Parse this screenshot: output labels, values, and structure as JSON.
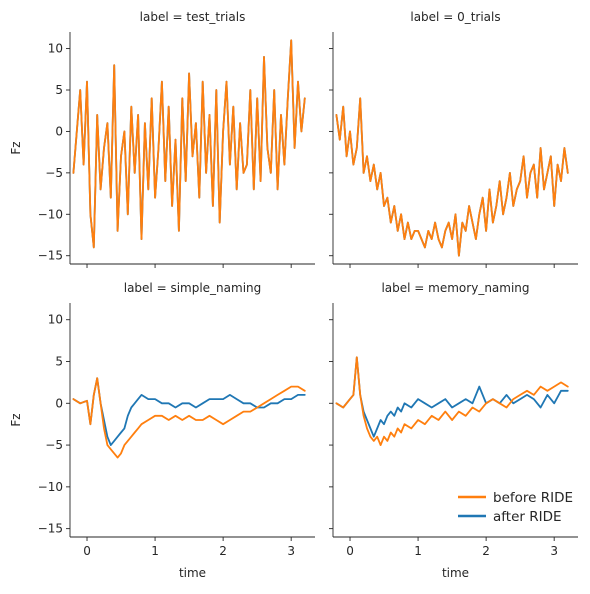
{
  "chart_data": [
    {
      "type": "line",
      "title": "label = test_trials",
      "xlabel": "",
      "ylabel": "Fz",
      "xlim": [
        -0.25,
        3.35
      ],
      "ylim": [
        -16,
        12
      ],
      "xticks": [
        0,
        1,
        2,
        3
      ],
      "yticks": [
        10,
        5,
        0,
        -5,
        -10,
        -15
      ],
      "show_x_tick_labels": false,
      "show_y_tick_labels": true,
      "series": [
        {
          "name": "after RIDE",
          "color": "#1f77b4",
          "x": [
            -0.2,
            -0.15,
            -0.1,
            -0.05,
            0,
            0.05,
            0.1,
            0.15,
            0.2,
            0.25,
            0.3,
            0.35,
            0.4,
            0.45,
            0.5,
            0.55,
            0.6,
            0.65,
            0.7,
            0.75,
            0.8,
            0.85,
            0.9,
            0.95,
            1.0,
            1.05,
            1.1,
            1.15,
            1.2,
            1.25,
            1.3,
            1.35,
            1.4,
            1.45,
            1.5,
            1.55,
            1.6,
            1.65,
            1.7,
            1.75,
            1.8,
            1.85,
            1.9,
            1.95,
            2.0,
            2.05,
            2.1,
            2.15,
            2.2,
            2.25,
            2.3,
            2.35,
            2.4,
            2.45,
            2.5,
            2.55,
            2.6,
            2.65,
            2.7,
            2.75,
            2.8,
            2.85,
            2.9,
            2.95,
            3.0,
            3.05,
            3.1,
            3.15,
            3.2
          ],
          "y": [
            -5,
            0,
            5,
            -4,
            6,
            -10,
            -14,
            2,
            -7,
            -2,
            1,
            -8,
            8,
            -12,
            -3,
            0,
            -10,
            3,
            -5,
            2,
            -13,
            1,
            -7,
            4,
            -8,
            -2,
            6,
            -6,
            3,
            -9,
            -1,
            -12,
            4,
            -6,
            7,
            -3,
            1,
            -8,
            6,
            -5,
            2,
            -9,
            5,
            -11,
            0,
            6,
            -4,
            3,
            -7,
            1,
            -5,
            -4,
            5,
            -7,
            4,
            -6,
            9,
            -2,
            -5,
            5,
            -7,
            2,
            -4,
            4,
            11,
            -2,
            6,
            0,
            4
          ]
        },
        {
          "name": "before RIDE",
          "color": "#ff7f0e",
          "x": [
            -0.2,
            -0.15,
            -0.1,
            -0.05,
            0,
            0.05,
            0.1,
            0.15,
            0.2,
            0.25,
            0.3,
            0.35,
            0.4,
            0.45,
            0.5,
            0.55,
            0.6,
            0.65,
            0.7,
            0.75,
            0.8,
            0.85,
            0.9,
            0.95,
            1.0,
            1.05,
            1.1,
            1.15,
            1.2,
            1.25,
            1.3,
            1.35,
            1.4,
            1.45,
            1.5,
            1.55,
            1.6,
            1.65,
            1.7,
            1.75,
            1.8,
            1.85,
            1.9,
            1.95,
            2.0,
            2.05,
            2.1,
            2.15,
            2.2,
            2.25,
            2.3,
            2.35,
            2.4,
            2.45,
            2.5,
            2.55,
            2.6,
            2.65,
            2.7,
            2.75,
            2.8,
            2.85,
            2.9,
            2.95,
            3.0,
            3.05,
            3.1,
            3.15,
            3.2
          ],
          "y": [
            -5,
            0,
            5,
            -4,
            6,
            -10,
            -14,
            2,
            -7,
            -2,
            1,
            -8,
            8,
            -12,
            -3,
            0,
            -10,
            3,
            -5,
            2,
            -13,
            1,
            -7,
            4,
            -8,
            -2,
            6,
            -6,
            3,
            -9,
            -1,
            -12,
            4,
            -6,
            7,
            -3,
            1,
            -8,
            6,
            -5,
            2,
            -9,
            5,
            -11,
            0,
            6,
            -4,
            3,
            -7,
            1,
            -5,
            -4,
            5,
            -7,
            4,
            -6,
            9,
            -2,
            -5,
            5,
            -7,
            2,
            -4,
            4,
            11,
            -2,
            6,
            0,
            4
          ]
        }
      ]
    },
    {
      "type": "line",
      "title": "label = 0_trials",
      "xlabel": "",
      "ylabel": "",
      "xlim": [
        -0.25,
        3.35
      ],
      "ylim": [
        -16,
        12
      ],
      "xticks": [
        0,
        1,
        2,
        3
      ],
      "yticks": [
        10,
        5,
        0,
        -5,
        -10,
        -15
      ],
      "show_x_tick_labels": false,
      "show_y_tick_labels": false,
      "series": [
        {
          "name": "after RIDE",
          "color": "#1f77b4",
          "x": [
            -0.2,
            -0.15,
            -0.1,
            -0.05,
            0,
            0.05,
            0.1,
            0.15,
            0.2,
            0.25,
            0.3,
            0.35,
            0.4,
            0.45,
            0.5,
            0.55,
            0.6,
            0.65,
            0.7,
            0.75,
            0.8,
            0.85,
            0.9,
            0.95,
            1.0,
            1.05,
            1.1,
            1.15,
            1.2,
            1.25,
            1.3,
            1.35,
            1.4,
            1.45,
            1.5,
            1.55,
            1.6,
            1.65,
            1.7,
            1.75,
            1.8,
            1.85,
            1.9,
            1.95,
            2.0,
            2.05,
            2.1,
            2.15,
            2.2,
            2.25,
            2.3,
            2.35,
            2.4,
            2.45,
            2.5,
            2.55,
            2.6,
            2.65,
            2.7,
            2.75,
            2.8,
            2.85,
            2.9,
            2.95,
            3.0,
            3.05,
            3.1,
            3.15,
            3.2
          ],
          "y": [
            2,
            -1,
            3,
            -3,
            0,
            -4,
            -2,
            4,
            -5,
            -3,
            -6,
            -4,
            -7,
            -5,
            -9,
            -8,
            -11,
            -9,
            -12,
            -10,
            -13,
            -11,
            -13,
            -12,
            -12,
            -13,
            -14,
            -12,
            -13,
            -11,
            -13,
            -14,
            -12,
            -11,
            -13,
            -10,
            -15,
            -11,
            -12,
            -9,
            -11,
            -13,
            -10,
            -8,
            -12,
            -7,
            -11,
            -9,
            -6,
            -10,
            -8,
            -5,
            -9,
            -7,
            -6,
            -3,
            -8,
            -5,
            -4,
            -8,
            -2,
            -7,
            -5,
            -3,
            -9,
            -4,
            -6,
            -2,
            -5
          ]
        },
        {
          "name": "before RIDE",
          "color": "#ff7f0e",
          "x": [
            -0.2,
            -0.15,
            -0.1,
            -0.05,
            0,
            0.05,
            0.1,
            0.15,
            0.2,
            0.25,
            0.3,
            0.35,
            0.4,
            0.45,
            0.5,
            0.55,
            0.6,
            0.65,
            0.7,
            0.75,
            0.8,
            0.85,
            0.9,
            0.95,
            1.0,
            1.05,
            1.1,
            1.15,
            1.2,
            1.25,
            1.3,
            1.35,
            1.4,
            1.45,
            1.5,
            1.55,
            1.6,
            1.65,
            1.7,
            1.75,
            1.8,
            1.85,
            1.9,
            1.95,
            2.0,
            2.05,
            2.1,
            2.15,
            2.2,
            2.25,
            2.3,
            2.35,
            2.4,
            2.45,
            2.5,
            2.55,
            2.6,
            2.65,
            2.7,
            2.75,
            2.8,
            2.85,
            2.9,
            2.95,
            3.0,
            3.05,
            3.1,
            3.15,
            3.2
          ],
          "y": [
            2,
            -1,
            3,
            -3,
            0,
            -4,
            -2,
            4,
            -5,
            -3,
            -6,
            -4,
            -7,
            -5,
            -9,
            -8,
            -11,
            -9,
            -12,
            -10,
            -13,
            -11,
            -13,
            -12,
            -12,
            -13,
            -14,
            -12,
            -13,
            -11,
            -13,
            -14,
            -12,
            -11,
            -13,
            -10,
            -15,
            -11,
            -12,
            -9,
            -11,
            -13,
            -10,
            -8,
            -12,
            -7,
            -11,
            -9,
            -6,
            -10,
            -8,
            -5,
            -9,
            -7,
            -6,
            -3,
            -8,
            -5,
            -4,
            -8,
            -2,
            -7,
            -5,
            -3,
            -9,
            -4,
            -6,
            -2,
            -5
          ]
        }
      ]
    },
    {
      "type": "line",
      "title": "label = simple_naming",
      "xlabel": "time",
      "ylabel": "Fz",
      "xlim": [
        -0.25,
        3.35
      ],
      "ylim": [
        -16,
        12
      ],
      "xticks": [
        0,
        1,
        2,
        3
      ],
      "yticks": [
        10,
        5,
        0,
        -5,
        -10,
        -15
      ],
      "show_x_tick_labels": true,
      "show_y_tick_labels": true,
      "series": [
        {
          "name": "after RIDE",
          "color": "#1f77b4",
          "x": [
            -0.2,
            -0.1,
            0,
            0.05,
            0.1,
            0.15,
            0.2,
            0.25,
            0.3,
            0.35,
            0.4,
            0.45,
            0.5,
            0.55,
            0.6,
            0.65,
            0.7,
            0.75,
            0.8,
            0.9,
            1.0,
            1.1,
            1.2,
            1.3,
            1.4,
            1.5,
            1.6,
            1.7,
            1.8,
            1.9,
            2.0,
            2.1,
            2.2,
            2.3,
            2.4,
            2.5,
            2.6,
            2.7,
            2.8,
            2.9,
            3.0,
            3.1,
            3.2
          ],
          "y": [
            0.5,
            0,
            0.3,
            -2.5,
            1,
            3,
            0,
            -2,
            -4,
            -5,
            -4.5,
            -4,
            -3.5,
            -3,
            -1.5,
            -0.5,
            0,
            0.5,
            1,
            0.5,
            0.5,
            0,
            0,
            -0.5,
            0,
            0,
            -0.5,
            0,
            0.5,
            0.5,
            0.5,
            1,
            0.5,
            0,
            0,
            -0.5,
            -0.5,
            0,
            0,
            0.5,
            0.5,
            1,
            1
          ]
        },
        {
          "name": "before RIDE",
          "color": "#ff7f0e",
          "x": [
            -0.2,
            -0.1,
            0,
            0.05,
            0.1,
            0.15,
            0.2,
            0.25,
            0.3,
            0.35,
            0.4,
            0.45,
            0.5,
            0.55,
            0.6,
            0.65,
            0.7,
            0.75,
            0.8,
            0.9,
            1.0,
            1.1,
            1.2,
            1.3,
            1.4,
            1.5,
            1.6,
            1.7,
            1.8,
            1.9,
            2.0,
            2.1,
            2.2,
            2.3,
            2.4,
            2.5,
            2.6,
            2.7,
            2.8,
            2.9,
            3.0,
            3.1,
            3.2
          ],
          "y": [
            0.5,
            0,
            0.3,
            -2.5,
            1,
            3,
            0,
            -3,
            -5,
            -5.5,
            -6,
            -6.5,
            -6,
            -5,
            -4.5,
            -4,
            -3.5,
            -3,
            -2.5,
            -2,
            -1.5,
            -1.5,
            -2,
            -1.5,
            -2,
            -1.5,
            -2,
            -2,
            -1.5,
            -2,
            -2.5,
            -2,
            -1.5,
            -1,
            -1,
            -0.5,
            0,
            0.5,
            1,
            1.5,
            2,
            2,
            1.5
          ]
        }
      ]
    },
    {
      "type": "line",
      "title": "label = memory_naming",
      "xlabel": "time",
      "ylabel": "",
      "xlim": [
        -0.25,
        3.35
      ],
      "ylim": [
        -16,
        12
      ],
      "xticks": [
        0,
        1,
        2,
        3
      ],
      "yticks": [
        10,
        5,
        0,
        -5,
        -10,
        -15
      ],
      "show_x_tick_labels": true,
      "show_y_tick_labels": false,
      "legend": {
        "placement": "lower-right",
        "entries": [
          {
            "name": "before RIDE",
            "color": "#ff7f0e"
          },
          {
            "name": "after RIDE",
            "color": "#1f77b4"
          }
        ]
      },
      "series": [
        {
          "name": "after RIDE",
          "color": "#1f77b4",
          "x": [
            -0.2,
            -0.1,
            0,
            0.05,
            0.1,
            0.15,
            0.2,
            0.25,
            0.3,
            0.35,
            0.4,
            0.45,
            0.5,
            0.55,
            0.6,
            0.65,
            0.7,
            0.75,
            0.8,
            0.9,
            1.0,
            1.1,
            1.2,
            1.3,
            1.4,
            1.5,
            1.6,
            1.7,
            1.8,
            1.9,
            2.0,
            2.1,
            2.2,
            2.3,
            2.4,
            2.5,
            2.6,
            2.7,
            2.8,
            2.9,
            3.0,
            3.1,
            3.2
          ],
          "y": [
            0,
            -0.5,
            0.5,
            1,
            5.5,
            1,
            -1,
            -2,
            -3,
            -4,
            -3,
            -2,
            -2.5,
            -1.5,
            -1,
            -1.5,
            -0.5,
            -1,
            0,
            -0.5,
            0.5,
            0,
            -0.5,
            0,
            0.5,
            -0.5,
            0,
            0.5,
            0,
            2,
            0,
            0.5,
            0,
            1,
            0,
            0.5,
            1,
            0.5,
            -0.5,
            1,
            0,
            1.5,
            1.5
          ]
        },
        {
          "name": "before RIDE",
          "color": "#ff7f0e",
          "x": [
            -0.2,
            -0.1,
            0,
            0.05,
            0.1,
            0.15,
            0.2,
            0.25,
            0.3,
            0.35,
            0.4,
            0.45,
            0.5,
            0.55,
            0.6,
            0.65,
            0.7,
            0.75,
            0.8,
            0.9,
            1.0,
            1.1,
            1.2,
            1.3,
            1.4,
            1.5,
            1.6,
            1.7,
            1.8,
            1.9,
            2.0,
            2.1,
            2.2,
            2.3,
            2.4,
            2.5,
            2.6,
            2.7,
            2.8,
            2.9,
            3.0,
            3.1,
            3.2
          ],
          "y": [
            0,
            -0.5,
            0.5,
            1,
            5.5,
            1,
            -1.5,
            -3,
            -4,
            -4.5,
            -4,
            -5,
            -4,
            -4.5,
            -3.5,
            -4,
            -3,
            -3.5,
            -2.5,
            -3,
            -2,
            -2.5,
            -1.5,
            -2,
            -1,
            -2,
            -1,
            -1.5,
            -0.5,
            -1,
            0,
            0.5,
            0,
            -0.5,
            0.5,
            1,
            1.5,
            1,
            2,
            1.5,
            2,
            2.5,
            2
          ]
        }
      ]
    }
  ]
}
